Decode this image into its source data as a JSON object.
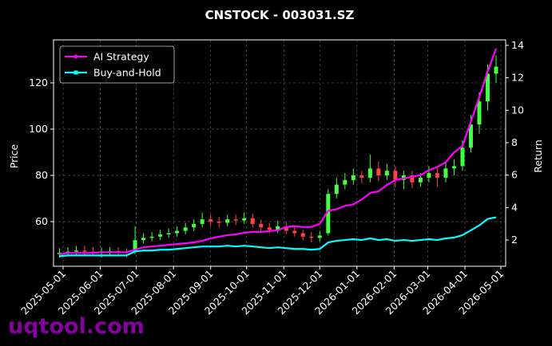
{
  "chart_data": {
    "type": "candlestick",
    "title": "CNSTOCK - 003031.SZ",
    "ylabel": "Price",
    "y2label": "Return",
    "watermark": "uqtool.com",
    "x": [
      "2025-04-28",
      "2025-05-05",
      "2025-05-12",
      "2025-05-19",
      "2025-05-26",
      "2025-06-02",
      "2025-06-09",
      "2025-06-16",
      "2025-06-23",
      "2025-06-30",
      "2025-07-07",
      "2025-07-14",
      "2025-07-21",
      "2025-07-28",
      "2025-08-04",
      "2025-08-11",
      "2025-08-18",
      "2025-08-25",
      "2025-09-01",
      "2025-09-08",
      "2025-09-15",
      "2025-09-22",
      "2025-09-29",
      "2025-10-06",
      "2025-10-13",
      "2025-10-20",
      "2025-10-27",
      "2025-11-03",
      "2025-11-10",
      "2025-11-17",
      "2025-11-24",
      "2025-12-01",
      "2025-12-08",
      "2025-12-15",
      "2025-12-22",
      "2025-12-29",
      "2026-01-05",
      "2026-01-12",
      "2026-01-19",
      "2026-01-26",
      "2026-02-02",
      "2026-02-09",
      "2026-02-16",
      "2026-02-23",
      "2026-03-02",
      "2026-03-09",
      "2026-03-16",
      "2026-03-23",
      "2026-03-30",
      "2026-04-06",
      "2026-04-13",
      "2026-04-20",
      "2026-04-27"
    ],
    "open": [
      46,
      46.5,
      47,
      47.5,
      47,
      46.5,
      46.8,
      47.2,
      46.9,
      47,
      52,
      53,
      53.5,
      54.5,
      55,
      56,
      57.5,
      59,
      61,
      60,
      59.5,
      61,
      60.5,
      61.5,
      59,
      57.5,
      56.5,
      58,
      56,
      55,
      53.5,
      53,
      55,
      72,
      76,
      78,
      80,
      79,
      83,
      80,
      82,
      78,
      80,
      77,
      79,
      81,
      79,
      83,
      84,
      92,
      102,
      112,
      124
    ],
    "high": [
      48.5,
      49,
      49.5,
      49.5,
      49,
      48.8,
      49,
      49,
      48.5,
      58,
      55,
      55.5,
      56.5,
      57,
      58,
      59.5,
      61,
      64,
      63,
      62,
      63,
      63,
      64,
      63.5,
      61,
      59.5,
      60.5,
      60,
      58,
      56.5,
      55.5,
      56,
      74,
      79,
      81,
      83,
      82,
      89,
      86,
      85,
      84,
      82,
      82,
      81,
      84,
      83,
      86,
      87,
      95,
      106,
      116,
      128,
      132
    ],
    "low": [
      44.5,
      45,
      45.5,
      45.5,
      45,
      44.5,
      45,
      45,
      44.5,
      46,
      50.5,
      51.5,
      52,
      53,
      53.5,
      54.5,
      56,
      57.5,
      58,
      57.5,
      58,
      58.5,
      59,
      57.5,
      55.5,
      55,
      55,
      54.5,
      53.5,
      52,
      51,
      51.5,
      54,
      70,
      74,
      76,
      76.5,
      77,
      77.5,
      78,
      75,
      74,
      74.5,
      75,
      77,
      75,
      77,
      80,
      82,
      90,
      98,
      108,
      120
    ],
    "close": [
      46.5,
      47,
      47.5,
      47,
      46.5,
      46.8,
      47.2,
      46.9,
      46.5,
      52,
      53,
      53.5,
      54.5,
      55,
      56,
      57.5,
      59,
      61,
      60,
      59.5,
      61,
      60.5,
      61.5,
      59,
      57.5,
      56.5,
      58,
      56,
      55,
      53.5,
      53,
      54,
      72,
      76,
      78,
      80,
      79,
      83,
      80,
      82,
      78,
      80,
      77,
      79,
      81,
      79,
      83,
      84,
      92,
      102,
      112,
      124,
      127
    ],
    "up_color": "#44ff44",
    "down_color": "#ff4444",
    "series": [
      {
        "name": "AI Strategy",
        "color": "#ff00ff",
        "axis": "y2",
        "marker": "circle",
        "values": [
          1.1,
          1.2,
          1.2,
          1.2,
          1.2,
          1.25,
          1.25,
          1.25,
          1.25,
          1.4,
          1.55,
          1.6,
          1.65,
          1.7,
          1.75,
          1.8,
          1.85,
          1.95,
          2.1,
          2.2,
          2.3,
          2.35,
          2.45,
          2.5,
          2.5,
          2.55,
          2.6,
          2.8,
          2.85,
          2.8,
          2.8,
          3.0,
          3.8,
          3.9,
          4.1,
          4.2,
          4.5,
          4.9,
          5.0,
          5.4,
          5.7,
          5.8,
          5.9,
          6.0,
          6.3,
          6.5,
          6.8,
          7.4,
          7.8,
          9.3,
          10.8,
          12.4,
          13.8
        ]
      },
      {
        "name": "Buy-and-Hold",
        "color": "#00ffff",
        "axis": "y2",
        "marker": "square",
        "values": [
          1.0,
          1.05,
          1.05,
          1.05,
          1.05,
          1.05,
          1.05,
          1.05,
          1.05,
          1.3,
          1.35,
          1.35,
          1.4,
          1.4,
          1.45,
          1.5,
          1.55,
          1.6,
          1.6,
          1.6,
          1.65,
          1.6,
          1.65,
          1.6,
          1.55,
          1.5,
          1.55,
          1.5,
          1.45,
          1.45,
          1.4,
          1.45,
          1.85,
          1.95,
          2.0,
          2.05,
          2.0,
          2.1,
          2.0,
          2.05,
          1.95,
          2.0,
          1.95,
          2.0,
          2.05,
          2.0,
          2.1,
          2.15,
          2.3,
          2.6,
          2.9,
          3.3,
          3.4
        ]
      }
    ],
    "xlim": [
      "2025-04-23",
      "2026-05-05"
    ],
    "xticks": [
      "2025-05-01",
      "2025-06-01",
      "2025-07-01",
      "2025-08-01",
      "2025-09-01",
      "2025-10-01",
      "2025-11-01",
      "2025-12-01",
      "2026-01-01",
      "2026-02-01",
      "2026-03-01",
      "2026-04-01",
      "2026-05-01"
    ],
    "ylim": [
      40.7,
      138.6
    ],
    "yticks": [
      60,
      80,
      100,
      120
    ],
    "y2lim": [
      0.38,
      14.34
    ],
    "y2ticks": [
      2,
      4,
      6,
      8,
      10,
      12,
      14
    ],
    "grid": true,
    "legend": "upper left"
  }
}
